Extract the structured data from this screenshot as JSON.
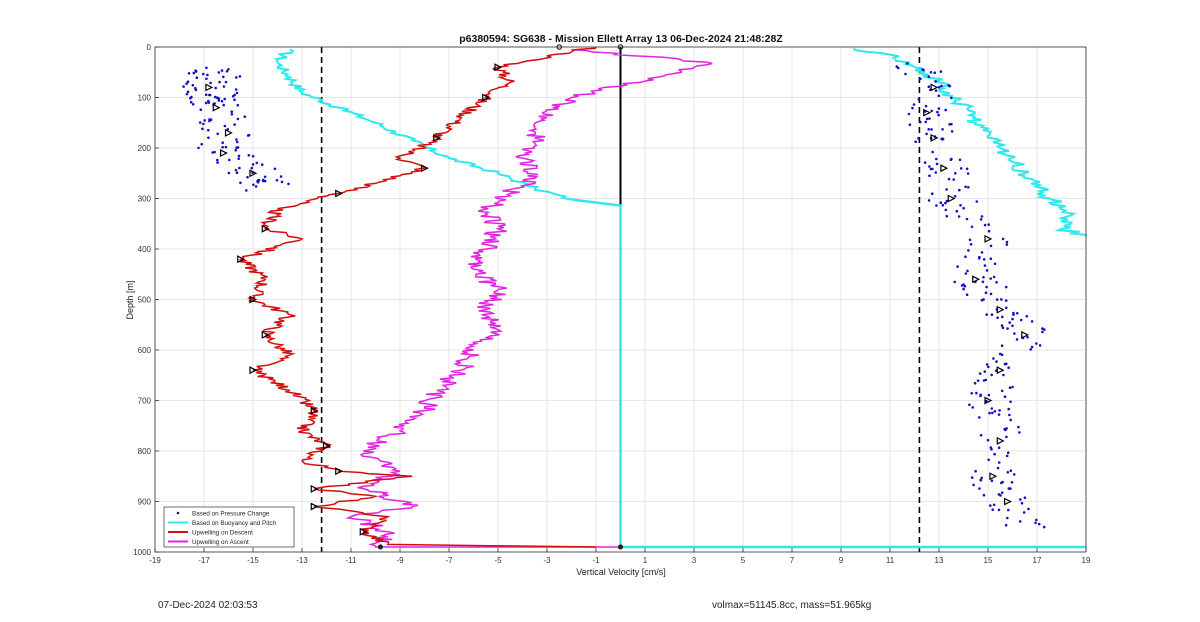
{
  "chart_data": {
    "type": "line",
    "title": "p6380594: SG638 - Mission Ellett Array 13 06-Dec-2024 21:48:28Z",
    "xlabel": "Vertical Velocity [cm/s]",
    "ylabel": "Depth [m]",
    "xlim": [
      -19,
      19
    ],
    "ylim": [
      0,
      1000
    ],
    "y_reversed": true,
    "x_ticks": [
      -19,
      -17,
      -15,
      -13,
      -11,
      -9,
      -7,
      -5,
      -3,
      -1,
      1,
      3,
      5,
      7,
      9,
      11,
      13,
      15,
      17,
      19
    ],
    "y_ticks": [
      0,
      100,
      200,
      300,
      400,
      500,
      600,
      700,
      800,
      900,
      1000
    ],
    "grid": true,
    "legend_position": "bottom-left",
    "reference_lines": [
      {
        "x": -12.2,
        "style": "dashed",
        "color": "#000000"
      },
      {
        "x": 12.2,
        "style": "dashed",
        "color": "#000000"
      },
      {
        "x": 0,
        "y_range": [
          0,
          315
        ],
        "style": "solid",
        "color": "#000000"
      }
    ],
    "series": [
      {
        "name": "Based on Pressure Change",
        "color": "#1010c8",
        "marker": "dot",
        "clusters": [
          {
            "x_range": [
              -18.5,
              -13.3
            ],
            "y_range": [
              0,
              300
            ]
          },
          {
            "x_range": [
              10.8,
              18.2
            ],
            "y_range": [
              0,
              990
            ]
          }
        ],
        "trend_descent": [
          [
            -16.5,
            40
          ],
          [
            -16.8,
            80
          ],
          [
            -16.5,
            120
          ],
          [
            -16.0,
            170
          ],
          [
            -16.2,
            210
          ],
          [
            -15.0,
            250
          ],
          [
            -14.5,
            280
          ]
        ],
        "trend_ascent": [
          [
            11.8,
            30
          ],
          [
            12.8,
            80
          ],
          [
            12.5,
            130
          ],
          [
            12.8,
            180
          ],
          [
            13.2,
            240
          ],
          [
            13.5,
            300
          ],
          [
            15.0,
            380
          ],
          [
            14.5,
            460
          ],
          [
            15.5,
            520
          ],
          [
            16.5,
            570
          ],
          [
            15.5,
            640
          ],
          [
            15.0,
            700
          ],
          [
            15.5,
            780
          ],
          [
            15.2,
            850
          ],
          [
            15.8,
            900
          ],
          [
            16.5,
            950
          ]
        ]
      },
      {
        "name": "Based on Buoyancy and Pitch",
        "color": "#2ee8ee",
        "descent": [
          [
            -13.5,
            5
          ],
          [
            -14.0,
            30
          ],
          [
            -13.5,
            60
          ],
          [
            -13.0,
            90
          ],
          [
            -11.5,
            120
          ],
          [
            -10.0,
            150
          ],
          [
            -8.5,
            185
          ],
          [
            -7.0,
            220
          ],
          [
            -5.0,
            250
          ],
          [
            -3.5,
            280
          ],
          [
            -2.0,
            302
          ],
          [
            0,
            314
          ],
          [
            0,
            990
          ],
          [
            19,
            990
          ]
        ],
        "ascent": [
          [
            19,
            375
          ],
          [
            18.0,
            360
          ],
          [
            18.5,
            330
          ],
          [
            17.5,
            300
          ],
          [
            16.5,
            250
          ],
          [
            15.5,
            200
          ],
          [
            14.5,
            150
          ],
          [
            14.2,
            120
          ],
          [
            13.5,
            100
          ],
          [
            13.0,
            70
          ],
          [
            12.0,
            40
          ],
          [
            11.0,
            15
          ],
          [
            9.5,
            3
          ]
        ]
      },
      {
        "name": "Upwelling on Descent",
        "color": "#d01010",
        "values": [
          [
            -1.0,
            0
          ],
          [
            -2.0,
            10
          ],
          [
            -5.0,
            40
          ],
          [
            -4.5,
            70
          ],
          [
            -5.5,
            100
          ],
          [
            -6.5,
            140
          ],
          [
            -7.5,
            180
          ],
          [
            -9.0,
            220
          ],
          [
            -8.0,
            240
          ],
          [
            -10.0,
            270
          ],
          [
            -11.5,
            290
          ],
          [
            -14.0,
            320
          ],
          [
            -14.5,
            360
          ],
          [
            -13.0,
            380
          ],
          [
            -15.5,
            420
          ],
          [
            -14.5,
            460
          ],
          [
            -15.0,
            500
          ],
          [
            -13.5,
            530
          ],
          [
            -14.5,
            570
          ],
          [
            -13.5,
            610
          ],
          [
            -15.0,
            640
          ],
          [
            -13.5,
            680
          ],
          [
            -12.5,
            720
          ],
          [
            -13.0,
            760
          ],
          [
            -12.0,
            790
          ],
          [
            -13.0,
            820
          ],
          [
            -11.5,
            840
          ],
          [
            -8.5,
            850
          ],
          [
            -12.5,
            875
          ],
          [
            -10.0,
            890
          ],
          [
            -12.5,
            910
          ],
          [
            -9.5,
            930
          ],
          [
            -10.5,
            960
          ],
          [
            -9.5,
            985
          ],
          [
            -1.0,
            990
          ]
        ]
      },
      {
        "name": "Upwelling on Ascent",
        "color": "#e024e0",
        "values": [
          [
            0,
            990
          ],
          [
            -10.0,
            990
          ],
          [
            -9.5,
            960
          ],
          [
            -11.0,
            930
          ],
          [
            -8.5,
            910
          ],
          [
            -10.5,
            870
          ],
          [
            -9.0,
            840
          ],
          [
            -10.5,
            800
          ],
          [
            -9.0,
            760
          ],
          [
            -8.0,
            720
          ],
          [
            -7.5,
            680
          ],
          [
            -6.5,
            640
          ],
          [
            -6.0,
            600
          ],
          [
            -5.0,
            560
          ],
          [
            -5.5,
            520
          ],
          [
            -5.0,
            480
          ],
          [
            -6.0,
            440
          ],
          [
            -5.5,
            400
          ],
          [
            -5.0,
            360
          ],
          [
            -5.5,
            330
          ],
          [
            -5.0,
            300
          ],
          [
            -3.5,
            260
          ],
          [
            -4.0,
            220
          ],
          [
            -3.5,
            180
          ],
          [
            -3.0,
            140
          ],
          [
            -2.0,
            100
          ],
          [
            1.5,
            60
          ],
          [
            3.5,
            30
          ],
          [
            -2.0,
            5
          ]
        ]
      }
    ]
  },
  "footer": {
    "left": "07-Dec-2024 02:03:53",
    "right": "volmax=51145.8cc, mass=51.965kg"
  }
}
